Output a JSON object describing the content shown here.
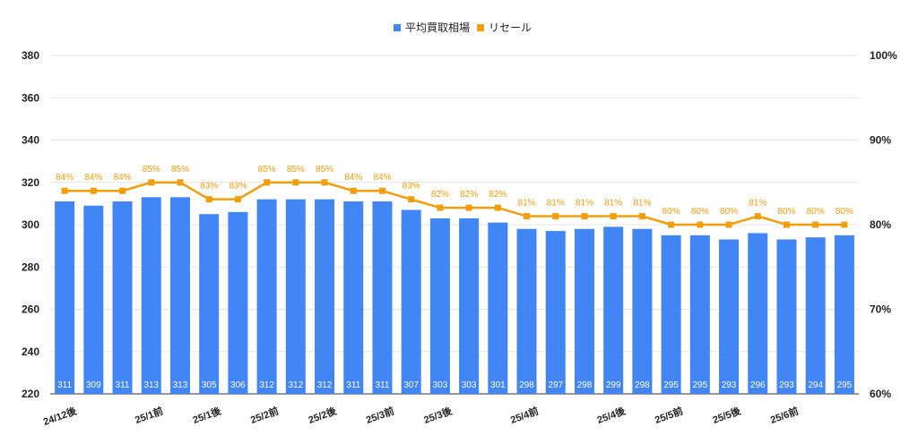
{
  "chart_data": {
    "type": "bar",
    "legend_position": "top",
    "grid": true,
    "colors": {
      "bar": "#4285f4",
      "line": "#f29d0a",
      "grid": "#e5e5e5"
    },
    "categories": [
      "24/12後",
      "",
      "",
      "25/1前",
      "",
      "25/1後",
      "",
      "25/2前",
      "",
      "25/2後",
      "",
      "25/3前",
      "",
      "25/3後",
      "",
      "",
      "25/4前",
      "",
      "",
      "25/4後",
      "",
      "25/5前",
      "",
      "25/5後",
      "",
      "25/6前",
      "",
      ""
    ],
    "series": [
      {
        "name": "平均買取相場",
        "type": "bar",
        "axis": "left",
        "values": [
          311,
          309,
          311,
          313,
          313,
          305,
          306,
          312,
          312,
          312,
          311,
          311,
          307,
          303,
          303,
          301,
          298,
          297,
          298,
          299,
          298,
          295,
          295,
          293,
          296,
          293,
          294,
          295
        ],
        "labels": [
          "311",
          "309",
          "311",
          "313",
          "313",
          "305",
          "306",
          "312",
          "312",
          "312",
          "311",
          "311",
          "307",
          "303",
          "303",
          "301",
          "298",
          "297",
          "298",
          "299",
          "298",
          "295",
          "295",
          "293",
          "296",
          "293",
          "294",
          "295"
        ]
      },
      {
        "name": "リセール",
        "type": "line",
        "axis": "right",
        "values": [
          84,
          84,
          84,
          85,
          85,
          83,
          83,
          85,
          85,
          85,
          84,
          84,
          83,
          82,
          82,
          82,
          81,
          81,
          81,
          81,
          81,
          80,
          80,
          80,
          81,
          80,
          80,
          80
        ],
        "labels": [
          "84%",
          "84%",
          "84%",
          "85%",
          "85%",
          "83%",
          "83%",
          "85%",
          "85%",
          "85%",
          "84%",
          "84%",
          "83%",
          "82%",
          "82%",
          "82%",
          "81%",
          "81%",
          "81%",
          "81%",
          "81%",
          "80%",
          "80%",
          "80%",
          "81%",
          "80%",
          "80%",
          "80%"
        ]
      }
    ],
    "y_left": {
      "ylim": [
        220,
        380
      ],
      "ticks": [
        "220",
        "240",
        "260",
        "280",
        "300",
        "320",
        "340",
        "360",
        "380"
      ]
    },
    "y_right": {
      "ylim": [
        60,
        100
      ],
      "ticks": [
        "60%",
        "70%",
        "80%",
        "90%",
        "100%"
      ]
    }
  }
}
